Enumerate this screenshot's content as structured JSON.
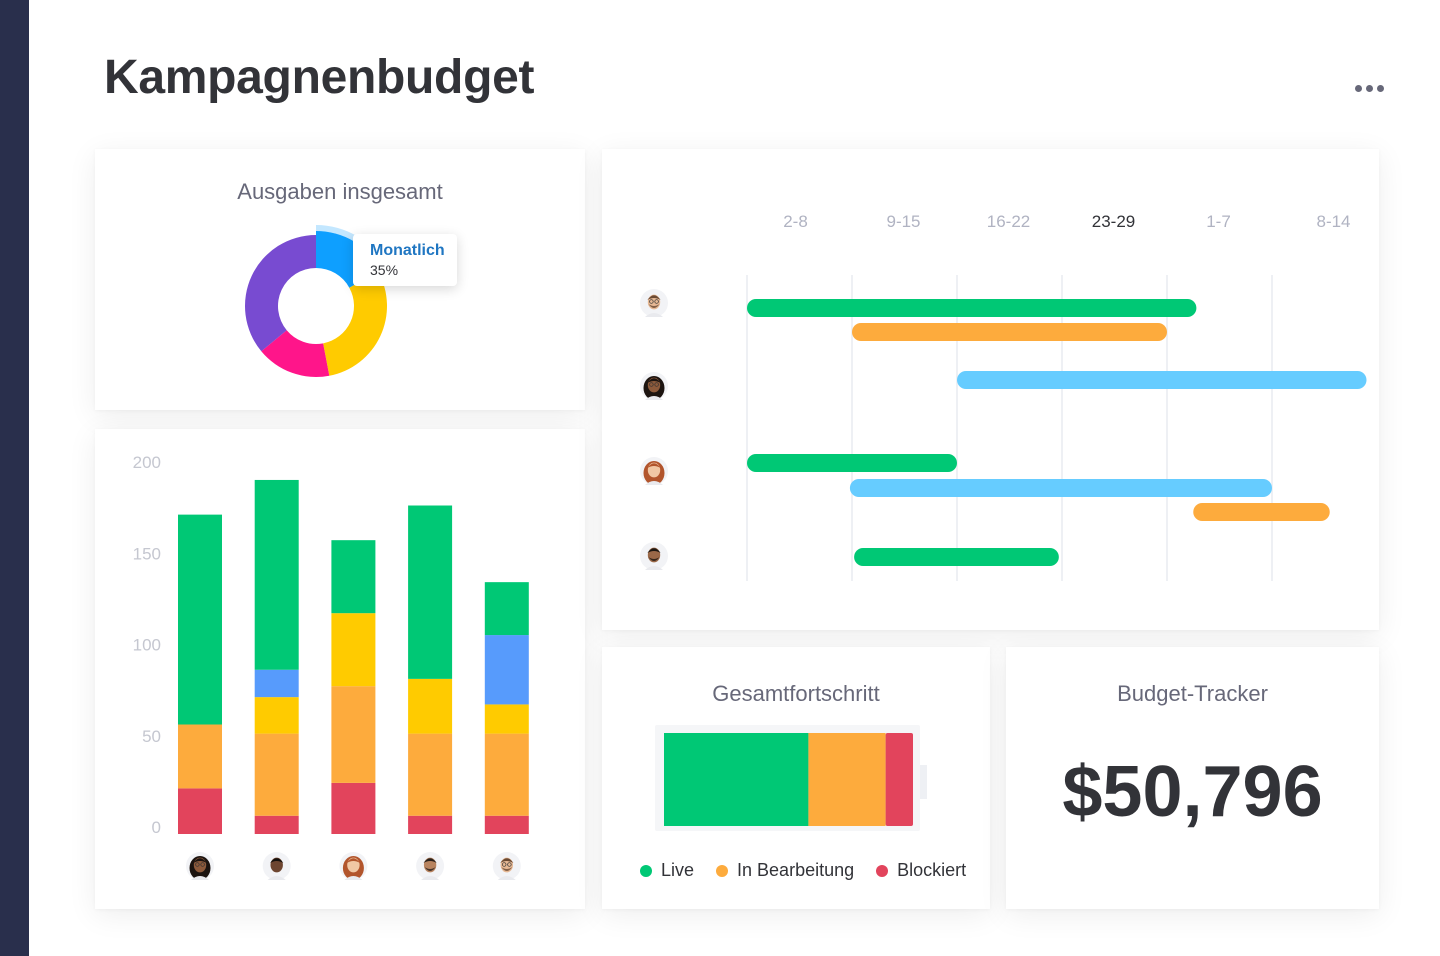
{
  "page": {
    "title": "Kampagnenbudget",
    "more_icon": "more-horizontal-icon"
  },
  "colors": {
    "green": "#00c875",
    "orange": "#fdab3d",
    "red": "#e2445c",
    "yellow": "#ffcb00",
    "blue": "#579bfc",
    "lightblue": "#66ccff",
    "purple": "#784bd1",
    "pink": "#ff158a",
    "sky": "#0e9fff",
    "sidebar": "#292f4c"
  },
  "donut": {
    "title": "Ausgaben insgesamt",
    "tooltip": {
      "label": "Monatlich",
      "value": "35%"
    },
    "chart_data": {
      "type": "pie",
      "slices": [
        {
          "value": 17,
          "color": "#0e9fff",
          "highlighted": true
        },
        {
          "value": 30,
          "color": "#ffcb00"
        },
        {
          "value": 17,
          "color": "#ff158a"
        },
        {
          "value": 36,
          "color": "#784bd1"
        }
      ]
    }
  },
  "bars": {
    "chart_data": {
      "type": "bar",
      "stacked": true,
      "ylim": [
        0,
        200
      ],
      "yticks": [
        "200",
        "150",
        "100",
        "50",
        "0"
      ],
      "categories": [
        "person-1",
        "person-2",
        "person-3",
        "person-4",
        "person-5"
      ],
      "series": [
        {
          "color": "#e2445c",
          "values": [
            25,
            10,
            28,
            10,
            10
          ]
        },
        {
          "color": "#fdab3d",
          "values": [
            35,
            45,
            53,
            45,
            45
          ]
        },
        {
          "color": "#ffcb00",
          "values": [
            0,
            20,
            40,
            30,
            16
          ]
        },
        {
          "color": "#579bfc",
          "values": [
            0,
            15,
            0,
            0,
            38
          ]
        },
        {
          "color": "#00c875",
          "values": [
            115,
            104,
            40,
            95,
            29
          ]
        }
      ]
    }
  },
  "gantt": {
    "columns": [
      {
        "label": "2-8",
        "current": false
      },
      {
        "label": "9-15",
        "current": false
      },
      {
        "label": "16-22",
        "current": false
      },
      {
        "label": "23-29",
        "current": true
      },
      {
        "label": "1-7",
        "current": false
      },
      {
        "label": "8-14",
        "current": false
      }
    ],
    "rows": [
      {
        "avatar": "avatar-man-beard",
        "tasks": [
          {
            "start": 0,
            "end": 4.28,
            "color": "#00c875"
          },
          {
            "start": 1,
            "end": 4.0,
            "color": "#fdab3d"
          }
        ]
      },
      {
        "avatar": "avatar-woman-curly",
        "tasks": [
          {
            "start": 2,
            "end": 5.9,
            "color": "#66ccff"
          }
        ]
      },
      {
        "avatar": "avatar-woman-red",
        "tasks": [
          {
            "start": 0,
            "end": 2.0,
            "color": "#00c875"
          },
          {
            "start": 0.98,
            "end": 5.0,
            "color": "#66ccff"
          },
          {
            "start": 4.25,
            "end": 5.55,
            "color": "#fdab3d"
          }
        ]
      },
      {
        "avatar": "avatar-man-dark",
        "tasks": [
          {
            "start": 1.02,
            "end": 2.97,
            "color": "#00c875"
          }
        ]
      }
    ]
  },
  "progress": {
    "title": "Gesamtfortschritt",
    "chart_data": {
      "type": "bar",
      "stacked": true,
      "segments": [
        {
          "name": "Live",
          "value": 58,
          "color": "#00c875"
        },
        {
          "name": "In Bearbeitung",
          "value": 31,
          "color": "#fdab3d"
        },
        {
          "name": "Blockiert",
          "value": 11,
          "color": "#e2445c"
        }
      ]
    },
    "legend": [
      {
        "label": "Live",
        "color": "#00c875"
      },
      {
        "label": "In Bearbeitung",
        "color": "#fdab3d"
      },
      {
        "label": "Blockiert",
        "color": "#e2445c"
      }
    ]
  },
  "budget": {
    "title": "Budget-Tracker",
    "value": "$50,796"
  }
}
